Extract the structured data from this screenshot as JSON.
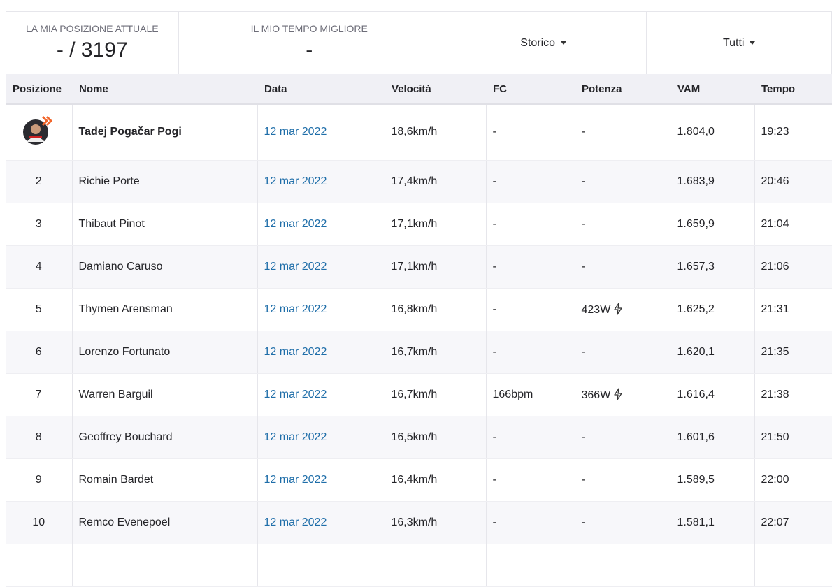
{
  "stats": {
    "position_label": "LA MIA POSIZIONE ATTUALE",
    "position_value": "- / 3197",
    "best_label": "IL MIO TEMPO MIGLIORE",
    "best_value": "-",
    "history_filter": "Storico",
    "scope_filter": "Tutti"
  },
  "table": {
    "columns": [
      "Posizione",
      "Nome",
      "Data",
      "Velocità",
      "FC",
      "Potenza",
      "VAM",
      "Tempo"
    ],
    "rows": [
      {
        "name": "Tadej Pogačar Pogi",
        "date": "12 mar 2022",
        "speed": "18,6km/h",
        "hr": "-",
        "power": "-",
        "vam": "1.804,0",
        "time": "19:23"
      },
      {
        "rank": "2",
        "name": "Richie Porte",
        "date": "12 mar 2022",
        "speed": "17,4km/h",
        "hr": "-",
        "power": "-",
        "vam": "1.683,9",
        "time": "20:46"
      },
      {
        "rank": "3",
        "name": "Thibaut Pinot",
        "date": "12 mar 2022",
        "speed": "17,1km/h",
        "hr": "-",
        "power": "-",
        "vam": "1.659,9",
        "time": "21:04"
      },
      {
        "rank": "4",
        "name": "Damiano Caruso",
        "date": "12 mar 2022",
        "speed": "17,1km/h",
        "hr": "-",
        "power": "-",
        "vam": "1.657,3",
        "time": "21:06"
      },
      {
        "rank": "5",
        "name": "Thymen Arensman",
        "date": "12 mar 2022",
        "speed": "16,8km/h",
        "hr": "-",
        "power": "423W",
        "vam": "1.625,2",
        "time": "21:31"
      },
      {
        "rank": "6",
        "name": "Lorenzo Fortunato",
        "date": "12 mar 2022",
        "speed": "16,7km/h",
        "hr": "-",
        "power": "-",
        "vam": "1.620,1",
        "time": "21:35"
      },
      {
        "rank": "7",
        "name": "Warren Barguil",
        "date": "12 mar 2022",
        "speed": "16,7km/h",
        "hr": "166bpm",
        "power": "366W",
        "vam": "1.616,4",
        "time": "21:38"
      },
      {
        "rank": "8",
        "name": "Geoffrey Bouchard",
        "date": "12 mar 2022",
        "speed": "16,5km/h",
        "hr": "-",
        "power": "-",
        "vam": "1.601,6",
        "time": "21:50"
      },
      {
        "rank": "9",
        "name": "Romain Bardet",
        "date": "12 mar 2022",
        "speed": "16,4km/h",
        "hr": "-",
        "power": "-",
        "vam": "1.589,5",
        "time": "22:00"
      },
      {
        "rank": "10",
        "name": "Remco Evenepoel",
        "date": "12 mar 2022",
        "speed": "16,3km/h",
        "hr": "-",
        "power": "-",
        "vam": "1.581,1",
        "time": "22:07"
      }
    ]
  }
}
